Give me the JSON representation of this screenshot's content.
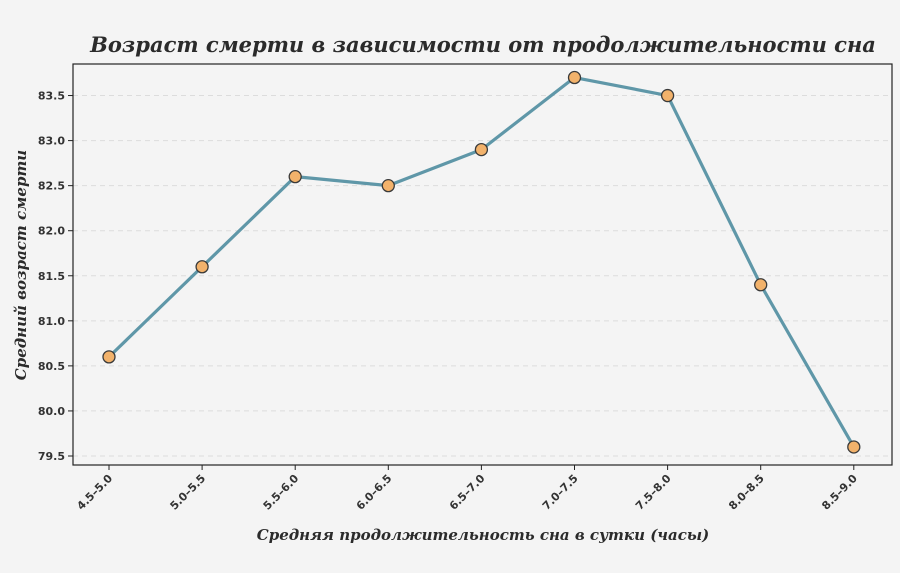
{
  "chart_data": {
    "type": "line",
    "title": "Возраст смерти в зависимости от продолжительности сна",
    "xlabel": "Средняя продолжительность сна в сутки (часы)",
    "ylabel": "Средний возраст смерти",
    "categories": [
      "4.5–5.0",
      "5.0–5.5",
      "5.5–6.0",
      "6.0–6.5",
      "6.5–7.0",
      "7.0–7.5",
      "7.5–8.0",
      "8.0–8.5",
      "8.5–9.0"
    ],
    "series": [
      {
        "values": [
          80.6,
          81.6,
          82.6,
          82.5,
          82.9,
          83.7,
          83.5,
          81.4,
          79.6
        ]
      }
    ],
    "ylim": [
      79.4,
      83.85
    ],
    "yticks": [
      79.5,
      80.0,
      80.5,
      81.0,
      81.5,
      82.0,
      82.5,
      83.0,
      83.5
    ],
    "grid": "horizontal dashed",
    "legend": "none",
    "colors": {
      "line": "#5f97a8",
      "marker_fill": "#f2b26b",
      "marker_edge": "#3a3a3a",
      "background": "#f4f4f4",
      "grid": "#dcdcdc"
    }
  }
}
